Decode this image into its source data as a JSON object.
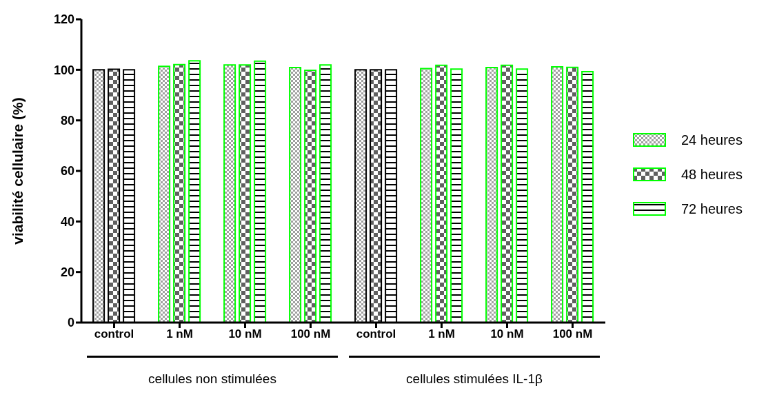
{
  "chart_data": {
    "type": "bar",
    "ylabel": "viabilité cellulaire (%)",
    "categories": [
      "control",
      "1 nM",
      "10 nM",
      "100 nM",
      "control",
      "1 nM",
      "10 nM",
      "100 nM"
    ],
    "series": [
      {
        "name": "24 heures",
        "color": "#00ff00",
        "colors": [
          "#000000",
          "#00ff00",
          "#00ff00",
          "#00ff00",
          "#000000",
          "#00ff00",
          "#00ff00",
          "#00ff00"
        ],
        "values": [
          100,
          101.4,
          101.9,
          100.9,
          100,
          100.5,
          100.9,
          101.2
        ]
      },
      {
        "name": "48 heures",
        "color": "#00ff00",
        "colors": [
          "#000000",
          "#00ff00",
          "#00ff00",
          "#00ff00",
          "#000000",
          "#00ff00",
          "#00ff00",
          "#00ff00"
        ],
        "values": [
          100.2,
          102.1,
          101.9,
          99.8,
          100,
          101.8,
          101.8,
          101
        ]
      },
      {
        "name": "72 heures",
        "color": "#00ff00",
        "colors": [
          "#000000",
          "#00ff00",
          "#00ff00",
          "#00ff00",
          "#000000",
          "#00ff00",
          "#00ff00",
          "#00ff00"
        ],
        "values": [
          100,
          103.6,
          103.4,
          101.9,
          100,
          100.3,
          100.3,
          99.3
        ]
      }
    ],
    "ylim": [
      0,
      120
    ],
    "yticks": [
      0,
      20,
      40,
      60,
      80,
      100,
      120
    ],
    "grid": false,
    "legend": "right",
    "annotations": [
      "cellules non stimulées",
      "cellules stimulées IL-1β"
    ]
  }
}
